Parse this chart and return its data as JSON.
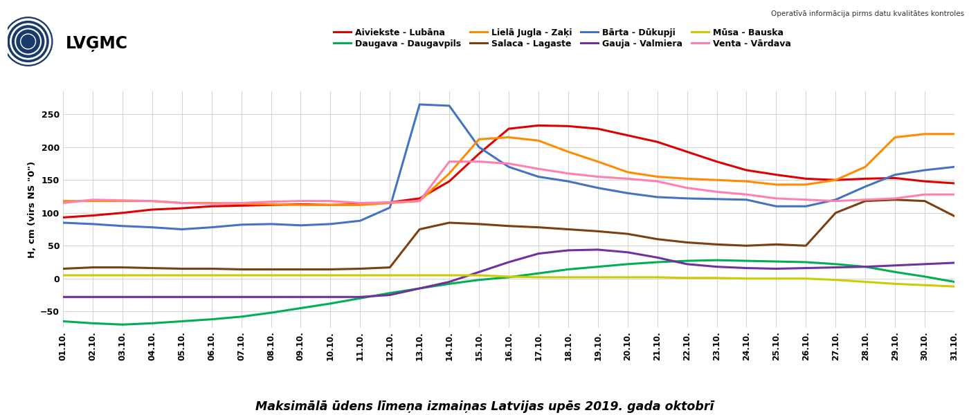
{
  "title": "Maksimālā ūdens līmeņa izmaiņas Latvijas upēs 2019. gada oktobrī",
  "ylabel": "H, cm (virs NS \"0\")",
  "watermark": "Operatīvā informācija pirms datu kvalitātes kontroles",
  "days": [
    1,
    2,
    3,
    4,
    5,
    6,
    7,
    8,
    9,
    10,
    11,
    12,
    13,
    14,
    15,
    16,
    17,
    18,
    19,
    20,
    21,
    22,
    23,
    24,
    25,
    26,
    27,
    28,
    29,
    30,
    31
  ],
  "legend_order": [
    [
      "Aiviekste - Lubāna",
      "#e00000"
    ],
    [
      "Daugava - Daugavpils",
      "#00b050"
    ],
    [
      "Lielā Jugla - Zaķi",
      "#ff8c00"
    ],
    [
      "Salaca - Lagaste",
      "#7b3f10"
    ],
    [
      "Bārta - Dūkupji",
      "#4472c4"
    ],
    [
      "Gauja - Valmiera",
      "#7030a0"
    ],
    [
      "Mūsa - Bauska",
      "#cccc00"
    ],
    [
      "Venta - Vārdava",
      "#ff80b0"
    ]
  ],
  "series": {
    "Aiviekste - Lubāna": {
      "color": "#e00000",
      "lw": 2.2,
      "values": [
        93,
        96,
        100,
        105,
        107,
        110,
        111,
        112,
        113,
        112,
        113,
        116,
        122,
        148,
        190,
        228,
        233,
        232,
        228,
        218,
        208,
        193,
        178,
        165,
        158,
        152,
        150,
        152,
        153,
        148,
        145
      ]
    },
    "Bārta - Dūkupji": {
      "color": "#4472c4",
      "lw": 2.2,
      "values": [
        85,
        83,
        80,
        78,
        75,
        78,
        82,
        83,
        81,
        83,
        88,
        108,
        265,
        263,
        200,
        170,
        155,
        148,
        138,
        130,
        124,
        122,
        121,
        120,
        110,
        110,
        120,
        140,
        158,
        165,
        170
      ]
    },
    "Daugava - Daugavpils": {
      "color": "#00b050",
      "lw": 2.2,
      "values": [
        -65,
        -68,
        -70,
        -68,
        -65,
        -62,
        -58,
        -52,
        -45,
        -38,
        -30,
        -22,
        -15,
        -8,
        -2,
        2,
        8,
        14,
        18,
        22,
        25,
        27,
        28,
        27,
        26,
        25,
        22,
        18,
        10,
        3,
        -5
      ]
    },
    "Gauja - Valmiera": {
      "color": "#7030a0",
      "lw": 2.2,
      "values": [
        -28,
        -28,
        -28,
        -28,
        -28,
        -28,
        -28,
        -28,
        -28,
        -28,
        -28,
        -25,
        -15,
        -5,
        10,
        25,
        38,
        43,
        44,
        40,
        32,
        22,
        18,
        16,
        15,
        16,
        17,
        18,
        20,
        22,
        24
      ]
    },
    "Lielā Jugla - Zaķi": {
      "color": "#ff8c00",
      "lw": 2.2,
      "values": [
        118,
        118,
        118,
        118,
        115,
        115,
        114,
        113,
        112,
        112,
        112,
        115,
        118,
        160,
        212,
        215,
        210,
        193,
        178,
        162,
        155,
        152,
        150,
        148,
        143,
        143,
        150,
        170,
        215,
        220,
        220
      ]
    },
    "Mūsa - Bauska": {
      "color": "#cccc00",
      "lw": 2.2,
      "values": [
        5,
        5,
        5,
        5,
        5,
        5,
        5,
        5,
        5,
        5,
        5,
        5,
        5,
        5,
        5,
        3,
        2,
        2,
        2,
        2,
        2,
        1,
        1,
        0,
        0,
        0,
        -2,
        -5,
        -8,
        -10,
        -12
      ]
    },
    "Salaca - Lagaste": {
      "color": "#7b3f10",
      "lw": 2.2,
      "values": [
        15,
        17,
        17,
        16,
        15,
        15,
        14,
        14,
        14,
        14,
        15,
        17,
        75,
        85,
        83,
        80,
        78,
        75,
        72,
        68,
        60,
        55,
        52,
        50,
        52,
        50,
        100,
        118,
        120,
        118,
        95
      ]
    },
    "Venta - Vārdava": {
      "color": "#ff80b0",
      "lw": 2.2,
      "values": [
        115,
        120,
        119,
        118,
        115,
        114,
        115,
        117,
        118,
        118,
        115,
        116,
        118,
        178,
        178,
        175,
        167,
        160,
        155,
        152,
        148,
        138,
        132,
        128,
        122,
        120,
        118,
        120,
        122,
        128,
        128
      ]
    }
  }
}
